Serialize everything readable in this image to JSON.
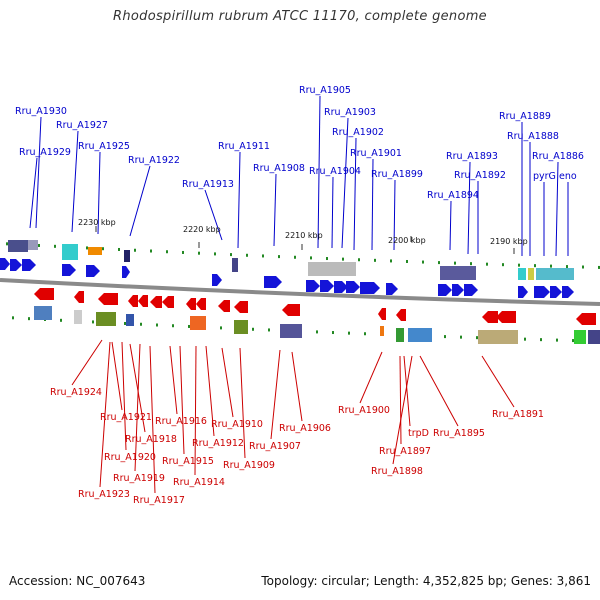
{
  "title": "Rhodospirillum rubrum ATCC 11170, complete genome",
  "footer": {
    "accession": "Accession: NC_007643",
    "summary": "Topology: circular; Length: 4,352,825 bp; Genes: 3,861"
  },
  "colors": {
    "forward_gene": "#1414d8",
    "reverse_gene": "#e00000",
    "label_forward": "#0000cc",
    "label_reverse": "#cc0000",
    "backbone": "#8a8a8a",
    "tick": "#228822"
  },
  "scale_labels": [
    "2230 kbp",
    "2220 kbp",
    "2210 kbp",
    "2200 kbp",
    "2190 kbp"
  ],
  "forward_labels": [
    "Rru_A1930",
    "Rru_A1929",
    "Rru_A1927",
    "Rru_A1925",
    "Rru_A1922",
    "Rru_A1913",
    "Rru_A1911",
    "Rru_A1908",
    "Rru_A1905",
    "Rru_A1903",
    "Rru_A1904",
    "Rru_A1902",
    "Rru_A1901",
    "Rru_A1899",
    "Rru_A1894",
    "Rru_A1893",
    "Rru_A1892",
    "Rru_A1889",
    "Rru_A1888",
    "Rru_A1886",
    "pyrG",
    "eno"
  ],
  "reverse_labels": [
    "Rru_A1924",
    "Rru_A1921",
    "Rru_A1918",
    "Rru_A1920",
    "Rru_A1919",
    "Rru_A1923",
    "Rru_A1916",
    "Rru_A1915",
    "Rru_A1917",
    "Rru_A1912",
    "Rru_A1914",
    "Rru_A1910",
    "Rru_A1909",
    "Rru_A1907",
    "Rru_A1906",
    "Rru_A1900",
    "trpD",
    "Rru_A1897",
    "Rru_A1898",
    "Rru_A1895",
    "Rru_A1891"
  ]
}
